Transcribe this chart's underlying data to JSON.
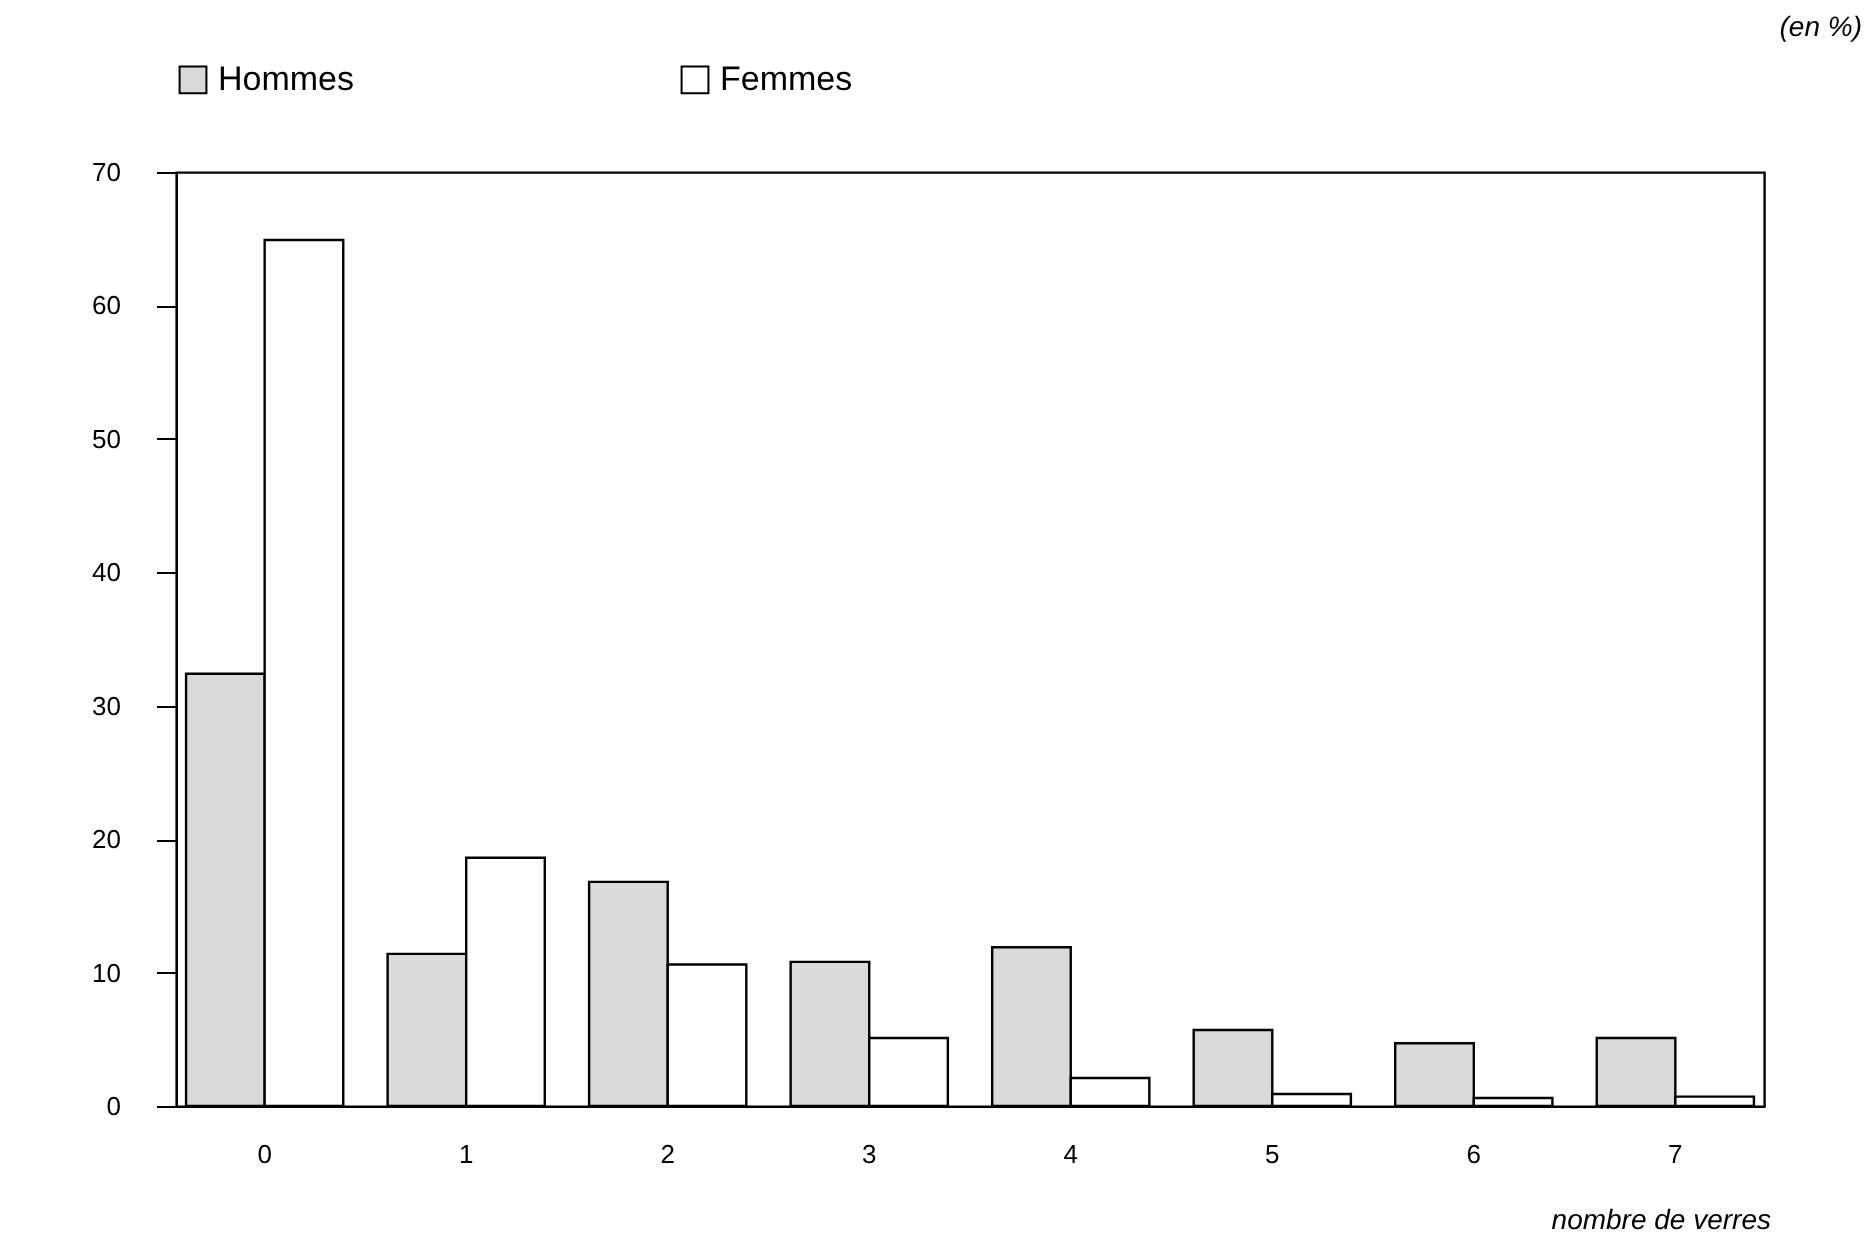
{
  "chart_data": {
    "type": "bar",
    "xlabel": "nombre de verres",
    "annotations": [
      "(en %)"
    ],
    "categories": [
      "0",
      "1",
      "2",
      "3",
      "4",
      "5",
      "6",
      "7"
    ],
    "series": [
      {
        "name": "Hommes",
        "color": "#d9d9d9",
        "values": [
          32.4,
          11.4,
          16.8,
          10.8,
          11.9,
          5.7,
          4.7,
          5.1
        ]
      },
      {
        "name": "Femmes",
        "color": "#ffffff",
        "values": [
          64.9,
          18.6,
          10.6,
          5.1,
          2.1,
          0.9,
          0.6,
          0.7
        ]
      }
    ],
    "ylim": [
      0,
      70
    ],
    "yticks": [
      0,
      10,
      20,
      30,
      40,
      50,
      60,
      70
    ],
    "grid": false,
    "legend": "top left"
  }
}
